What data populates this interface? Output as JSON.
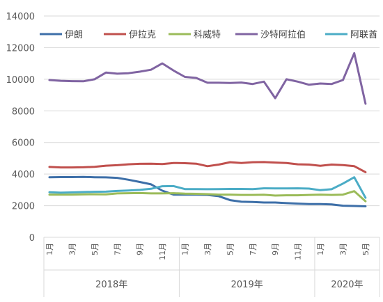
{
  "chart_data": {
    "type": "line",
    "title": "",
    "xlabel": "",
    "ylabel": "",
    "ylim": [
      0,
      14000
    ],
    "y_ticks": [
      "0",
      "2000",
      "4000",
      "6000",
      "8000",
      "10000",
      "12000",
      "14000"
    ],
    "grid": true,
    "legend": "top",
    "x": [
      "2018-01",
      "2018-02",
      "2018-03",
      "2018-04",
      "2018-05",
      "2018-06",
      "2018-07",
      "2018-08",
      "2018-09",
      "2018-10",
      "2018-11",
      "2018-12",
      "2019-01",
      "2019-02",
      "2019-03",
      "2019-04",
      "2019-05",
      "2019-06",
      "2019-07",
      "2019-08",
      "2019-09",
      "2019-10",
      "2019-11",
      "2019-12",
      "2020-01",
      "2020-02",
      "2020-03",
      "2020-04",
      "2020-05"
    ],
    "x_tick_labels": [
      "1月",
      "",
      "3月",
      "",
      "5月",
      "",
      "7月",
      "",
      "9月",
      "",
      "11月",
      "",
      "1月",
      "",
      "3月",
      "",
      "5月",
      "",
      "7月",
      "",
      "9月",
      "",
      "11月",
      "",
      "1月",
      "",
      "3月",
      "",
      "5月"
    ],
    "year_groups": [
      {
        "label": "2018年",
        "start": 0,
        "end": 11
      },
      {
        "label": "2019年",
        "start": 12,
        "end": 23
      },
      {
        "label": "2020年",
        "start": 24,
        "end": 28
      }
    ],
    "series": [
      {
        "name": "伊朗",
        "color": "#3d6fa8",
        "values": [
          3800,
          3810,
          3810,
          3820,
          3800,
          3790,
          3760,
          3640,
          3500,
          3350,
          2950,
          2700,
          2700,
          2700,
          2680,
          2600,
          2350,
          2250,
          2230,
          2200,
          2200,
          2160,
          2130,
          2100,
          2100,
          2080,
          2000,
          1980,
          1960
        ]
      },
      {
        "name": "伊拉克",
        "color": "#c0504d",
        "values": [
          4450,
          4420,
          4420,
          4430,
          4460,
          4530,
          4560,
          4620,
          4650,
          4660,
          4630,
          4700,
          4690,
          4660,
          4500,
          4600,
          4750,
          4700,
          4750,
          4760,
          4730,
          4700,
          4620,
          4600,
          4520,
          4600,
          4570,
          4500,
          4120
        ]
      },
      {
        "name": "科威特",
        "color": "#9bbb59",
        "values": [
          2700,
          2700,
          2700,
          2710,
          2720,
          2710,
          2780,
          2790,
          2800,
          2780,
          2780,
          2790,
          2760,
          2750,
          2730,
          2700,
          2700,
          2680,
          2680,
          2690,
          2640,
          2660,
          2660,
          2680,
          2700,
          2680,
          2700,
          2920,
          2280
        ]
      },
      {
        "name": "沙特阿拉伯",
        "color": "#8064a2",
        "values": [
          9950,
          9900,
          9880,
          9870,
          10000,
          10420,
          10350,
          10380,
          10480,
          10600,
          11000,
          10550,
          10150,
          10080,
          9780,
          9780,
          9760,
          9790,
          9700,
          9850,
          8800,
          10000,
          9850,
          9650,
          9730,
          9700,
          9950,
          11650,
          8450
        ]
      },
      {
        "name": "阿联酋",
        "color": "#4bacc6",
        "values": [
          2850,
          2820,
          2840,
          2860,
          2880,
          2890,
          2930,
          2960,
          3000,
          3070,
          3230,
          3240,
          3050,
          3050,
          3040,
          3050,
          3060,
          3060,
          3050,
          3100,
          3090,
          3090,
          3100,
          3080,
          2980,
          3040,
          3400,
          3800,
          2500
        ]
      }
    ]
  }
}
